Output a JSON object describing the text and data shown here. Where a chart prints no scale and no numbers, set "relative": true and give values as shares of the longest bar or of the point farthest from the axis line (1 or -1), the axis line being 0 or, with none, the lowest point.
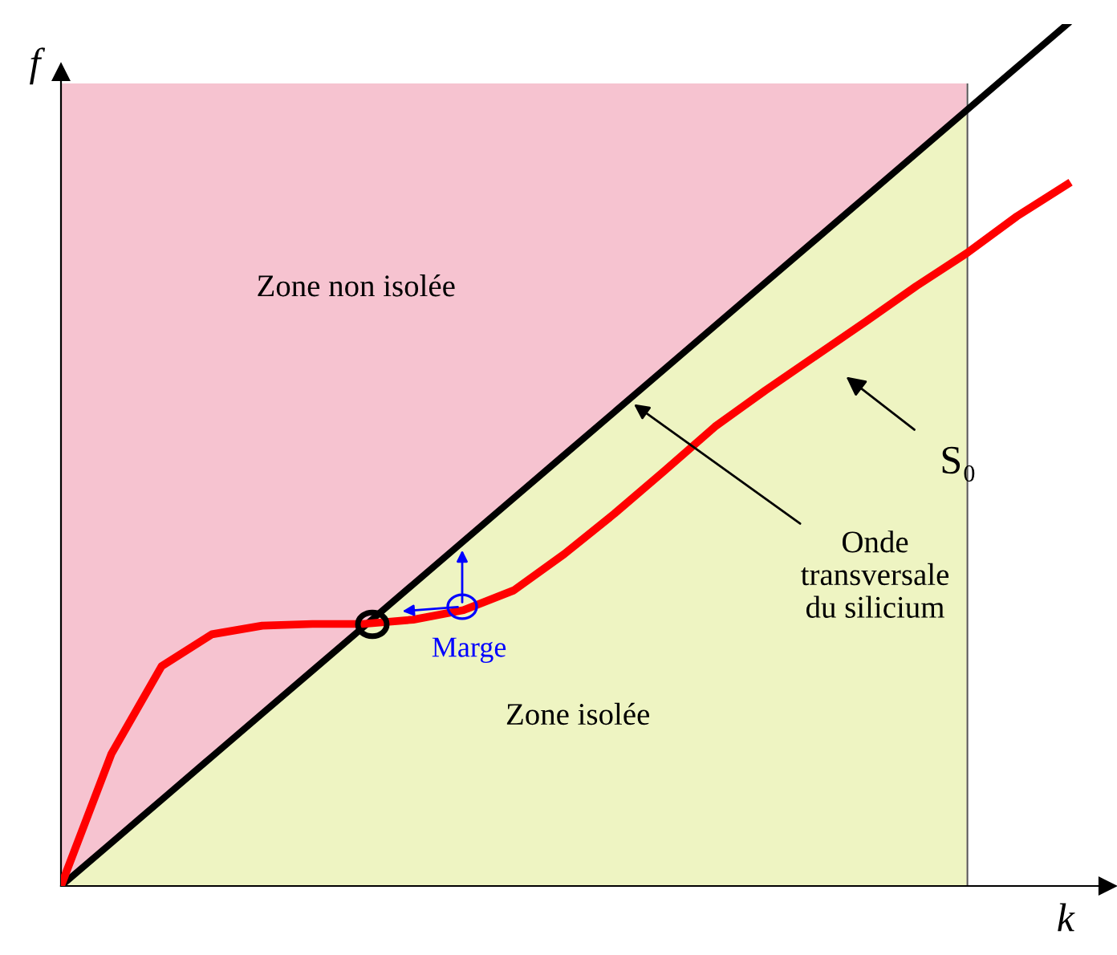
{
  "chart_data": {
    "type": "line",
    "relative": true,
    "xlabel": "k",
    "ylabel": "f",
    "categories": [
      null,
      null,
      null,
      null,
      null,
      null,
      null,
      null,
      null,
      null,
      null,
      null,
      null,
      null,
      null,
      null,
      null,
      null,
      null,
      null,
      null
    ],
    "series": [
      {
        "type": "area",
        "color": "#f6c3d0",
        "values": [
          0.931,
          0.931,
          0.931,
          0.931,
          0.931,
          0.931,
          0.931,
          0.931,
          0.931,
          0.931,
          0.931,
          0.931,
          0.931,
          0.931,
          0.931,
          0.931,
          0.931,
          0.931,
          0.931,
          null,
          null
        ]
      },
      {
        "type": "area",
        "color": "#eef4c2",
        "values": [
          0,
          0.05,
          0.1,
          0.15,
          0.2,
          0.25,
          0.3,
          0.35,
          0.4,
          0.45,
          0.5,
          0.55,
          0.6,
          0.65,
          0.7,
          0.75,
          0.8,
          0.85,
          0.9,
          null,
          null
        ]
      },
      {
        "color": "#000000",
        "values": [
          0,
          0.05,
          0.1,
          0.15,
          0.2,
          0.25,
          0.3,
          0.35,
          0.4,
          0.45,
          0.5,
          0.55,
          0.6,
          0.65,
          0.7,
          0.75,
          0.8,
          0.85,
          0.9,
          0.95,
          1
        ]
      },
      {
        "color": "#ff0000",
        "values": [
          0,
          0.153,
          0.255,
          0.292,
          0.302,
          0.304,
          0.304,
          0.309,
          0.32,
          0.343,
          0.385,
          0.432,
          0.482,
          0.533,
          0.575,
          0.615,
          0.655,
          0.696,
          0.734,
          0.777,
          0.814
        ]
      }
    ],
    "annotations": [
      "Zone non isolée",
      "Zone isolée",
      "Onde\ntransversale\ndu silicium",
      "S₀",
      "Marge"
    ],
    "marker": "none",
    "line_style": "solid"
  }
}
